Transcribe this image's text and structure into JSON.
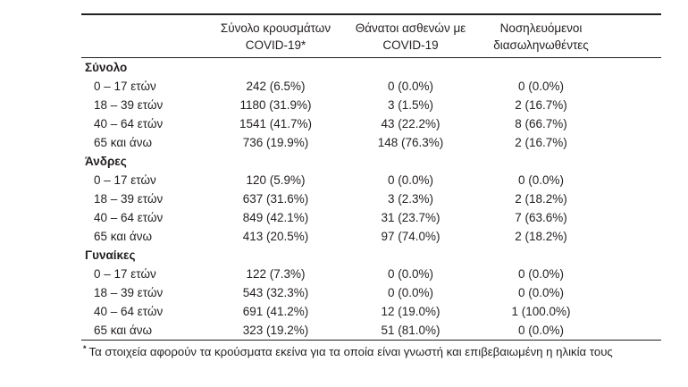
{
  "table": {
    "headers": {
      "cases": {
        "line1": "Σύνολο κρουσμάτων",
        "line2": "COVID-19*"
      },
      "deaths": {
        "line1": "Θάνατοι ασθενών με",
        "line2": "COVID-19"
      },
      "intubated": {
        "line1": "Νοσηλευόμενοι",
        "line2": "διασωληνωθέντες"
      }
    },
    "groups": [
      {
        "label": "Σύνολο",
        "rows": [
          {
            "label": "0 – 17 ετών",
            "cases": "242 (6.5%)",
            "deaths": "0 (0.0%)",
            "intubated": "0 (0.0%)"
          },
          {
            "label": "18 – 39 ετών",
            "cases": "1180 (31.9%)",
            "deaths": "3 (1.5%)",
            "intubated": "2 (16.7%)"
          },
          {
            "label": "40 – 64 ετών",
            "cases": "1541 (41.7%)",
            "deaths": "43 (22.2%)",
            "intubated": "8 (66.7%)"
          },
          {
            "label": "65 και άνω",
            "cases": "736 (19.9%)",
            "deaths": "148 (76.3%)",
            "intubated": "2 (16.7%)"
          }
        ]
      },
      {
        "label": "Άνδρες",
        "rows": [
          {
            "label": "0 – 17 ετών",
            "cases": "120 (5.9%)",
            "deaths": "0 (0.0%)",
            "intubated": "0 (0.0%)"
          },
          {
            "label": "18 – 39 ετών",
            "cases": "637 (31.6%)",
            "deaths": "3 (2.3%)",
            "intubated": "2 (18.2%)"
          },
          {
            "label": "40 – 64 ετών",
            "cases": "849 (42.1%)",
            "deaths": "31 (23.7%)",
            "intubated": "7 (63.6%)"
          },
          {
            "label": "65 και άνω",
            "cases": "413 (20.5%)",
            "deaths": "97 (74.0%)",
            "intubated": "2 (18.2%)"
          }
        ]
      },
      {
        "label": "Γυναίκες",
        "rows": [
          {
            "label": "0 – 17 ετών",
            "cases": "122 (7.3%)",
            "deaths": "0 (0.0%)",
            "intubated": "0 (0.0%)"
          },
          {
            "label": "18 – 39 ετών",
            "cases": "543 (32.3%)",
            "deaths": "0 (0.0%)",
            "intubated": "0 (0.0%)"
          },
          {
            "label": "40 – 64 ετών",
            "cases": "691 (41.2%)",
            "deaths": "12 (19.0%)",
            "intubated": "1 (100.0%)"
          },
          {
            "label": "65 και άνω",
            "cases": "323 (19.2%)",
            "deaths": "51 (81.0%)",
            "intubated": "0 (0.0%)"
          }
        ]
      }
    ],
    "footnote": {
      "marker": "*",
      "text": "Τα στοιχεία αφορούν τα κρούσματα εκείνα για τα οποία είναι γνωστή και επιβεβαιωμένη η ηλικία τους"
    }
  },
  "colors": {
    "text": "#231f20",
    "rule": "#231f20",
    "background": "#ffffff"
  }
}
